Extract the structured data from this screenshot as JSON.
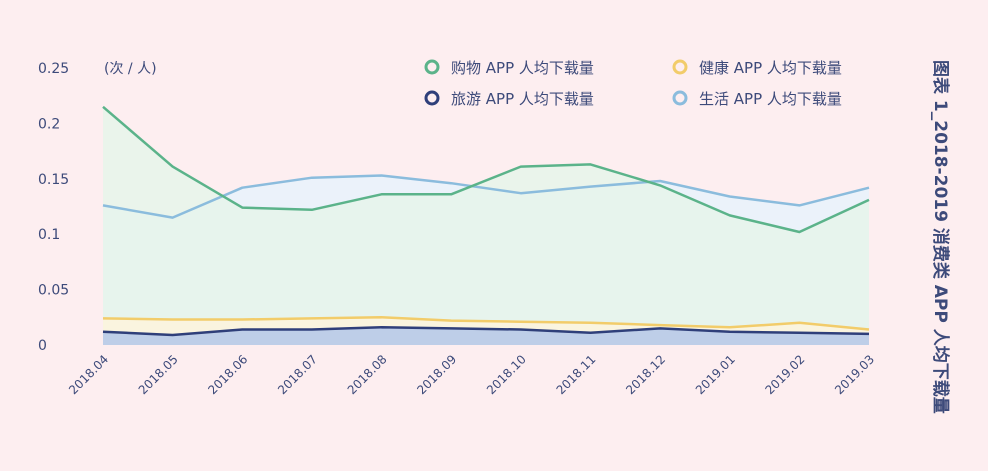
{
  "chart_data": {
    "type": "area",
    "title": "图表 1_2018-2019 消费类 APP 人均下载量",
    "unit_label": "(次 / 人)",
    "categories": [
      "2018.04",
      "2018.05",
      "2018.06",
      "2018.07",
      "2018.08",
      "2018.09",
      "2018.10",
      "2018.11",
      "2018.12",
      "2019.01",
      "2019.02",
      "2019.03"
    ],
    "ylim": [
      0,
      0.25
    ],
    "yticks": [
      0,
      0.05,
      0.1,
      0.15,
      0.2,
      0.25
    ],
    "ytick_labels": [
      "0",
      "0.05",
      "0.1",
      "0.15",
      "0.2",
      "0.25"
    ],
    "legend_position": "top-right",
    "grid": false,
    "series": [
      {
        "name": "生活 APP 人均下载量",
        "color": "#8bbcdd",
        "fill": "#e8f2fb",
        "values": [
          0.126,
          0.115,
          0.142,
          0.151,
          0.153,
          0.146,
          0.137,
          0.143,
          0.148,
          0.134,
          0.126,
          0.142
        ]
      },
      {
        "name": "购物 APP 人均下载量",
        "color": "#5bb38a",
        "fill": "#e6f5ea",
        "values": [
          0.215,
          0.161,
          0.124,
          0.122,
          0.136,
          0.136,
          0.161,
          0.163,
          0.144,
          0.117,
          0.102,
          0.131
        ]
      },
      {
        "name": "健康 APP 人均下载量",
        "color": "#f2cc6a",
        "fill": "#fdf3dc",
        "values": [
          0.024,
          0.023,
          0.023,
          0.024,
          0.025,
          0.022,
          0.021,
          0.02,
          0.018,
          0.016,
          0.02,
          0.014
        ]
      },
      {
        "name": "旅游 APP 人均下载量",
        "color": "#2f3f7a",
        "fill": "#b3c7ea",
        "values": [
          0.012,
          0.009,
          0.014,
          0.014,
          0.016,
          0.015,
          0.014,
          0.011,
          0.015,
          0.012,
          0.011,
          0.01
        ]
      }
    ]
  }
}
